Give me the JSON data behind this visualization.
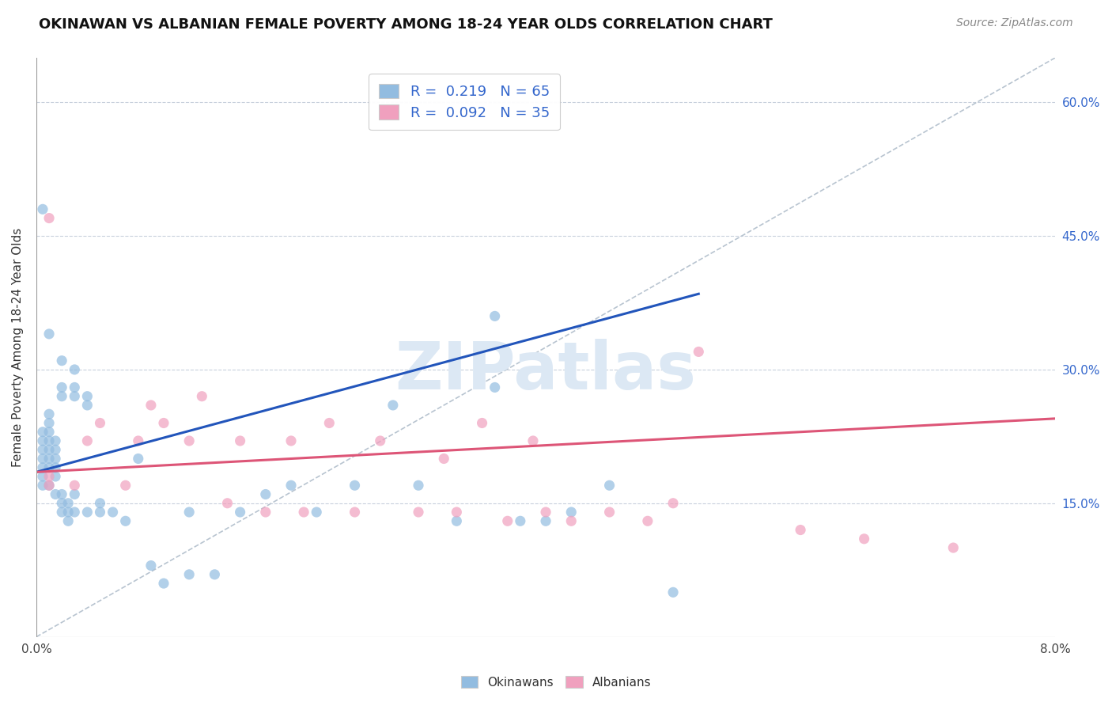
{
  "title": "OKINAWAN VS ALBANIAN FEMALE POVERTY AMONG 18-24 YEAR OLDS CORRELATION CHART",
  "source": "Source: ZipAtlas.com",
  "ylabel": "Female Poverty Among 18-24 Year Olds",
  "xlim": [
    0.0,
    0.08
  ],
  "ylim": [
    0.0,
    0.65
  ],
  "okinawan_color": "#92bce0",
  "albanian_color": "#f0a0be",
  "okinawan_line_color": "#2255bb",
  "albanian_line_color": "#dd5577",
  "ref_line_color": "#b8c4d0",
  "watermark_text": "ZIPatlas",
  "watermark_color": "#dce8f4",
  "okinawan_x": [
    0.0005,
    0.0005,
    0.0005,
    0.0005,
    0.0005,
    0.0005,
    0.0005,
    0.001,
    0.001,
    0.001,
    0.001,
    0.001,
    0.001,
    0.001,
    0.001,
    0.0015,
    0.0015,
    0.0015,
    0.0015,
    0.0015,
    0.0015,
    0.002,
    0.002,
    0.002,
    0.002,
    0.002,
    0.0025,
    0.0025,
    0.0025,
    0.003,
    0.003,
    0.003,
    0.003,
    0.004,
    0.004,
    0.005,
    0.005,
    0.006,
    0.007,
    0.008,
    0.009,
    0.01,
    0.012,
    0.012,
    0.014,
    0.016,
    0.018,
    0.02,
    0.022,
    0.025,
    0.028,
    0.03,
    0.033,
    0.036,
    0.038,
    0.04,
    0.042,
    0.045,
    0.05,
    0.0005,
    0.001,
    0.002,
    0.003,
    0.004,
    0.036
  ],
  "okinawan_y": [
    0.19,
    0.2,
    0.21,
    0.22,
    0.23,
    0.17,
    0.18,
    0.24,
    0.25,
    0.19,
    0.2,
    0.21,
    0.22,
    0.23,
    0.17,
    0.18,
    0.19,
    0.2,
    0.21,
    0.22,
    0.16,
    0.14,
    0.15,
    0.16,
    0.27,
    0.28,
    0.13,
    0.14,
    0.15,
    0.14,
    0.27,
    0.28,
    0.16,
    0.14,
    0.26,
    0.14,
    0.15,
    0.14,
    0.13,
    0.2,
    0.08,
    0.06,
    0.07,
    0.14,
    0.07,
    0.14,
    0.16,
    0.17,
    0.14,
    0.17,
    0.26,
    0.17,
    0.13,
    0.28,
    0.13,
    0.13,
    0.14,
    0.17,
    0.05,
    0.48,
    0.34,
    0.31,
    0.3,
    0.27,
    0.36
  ],
  "albanian_x": [
    0.001,
    0.001,
    0.001,
    0.003,
    0.004,
    0.005,
    0.007,
    0.008,
    0.009,
    0.01,
    0.012,
    0.013,
    0.015,
    0.016,
    0.018,
    0.02,
    0.021,
    0.023,
    0.025,
    0.027,
    0.03,
    0.032,
    0.033,
    0.035,
    0.037,
    0.039,
    0.04,
    0.042,
    0.045,
    0.048,
    0.05,
    0.052,
    0.06,
    0.065,
    0.072
  ],
  "albanian_y": [
    0.17,
    0.18,
    0.47,
    0.17,
    0.22,
    0.24,
    0.17,
    0.22,
    0.26,
    0.24,
    0.22,
    0.27,
    0.15,
    0.22,
    0.14,
    0.22,
    0.14,
    0.24,
    0.14,
    0.22,
    0.14,
    0.2,
    0.14,
    0.24,
    0.13,
    0.22,
    0.14,
    0.13,
    0.14,
    0.13,
    0.15,
    0.32,
    0.12,
    0.11,
    0.1
  ],
  "ok_line_x": [
    0.0,
    0.052
  ],
  "ok_line_y": [
    0.185,
    0.385
  ],
  "al_line_x": [
    0.0,
    0.08
  ],
  "al_line_y": [
    0.185,
    0.245
  ],
  "ref_line_x": [
    0.0,
    0.08
  ],
  "ref_line_y": [
    0.0,
    0.65
  ],
  "ytick_positions": [
    0.15,
    0.3,
    0.45,
    0.6
  ],
  "ytick_labels": [
    "15.0%",
    "30.0%",
    "45.0%",
    "60.0%"
  ],
  "xtick_positions": [
    0.0,
    0.08
  ],
  "xtick_labels": [
    "0.0%",
    "8.0%"
  ],
  "legend_r_ok": "R =  0.219",
  "legend_n_ok": "N = 65",
  "legend_r_al": "R =  0.092",
  "legend_n_al": "N = 35",
  "bottom_legend_ok": "Okinawans",
  "bottom_legend_al": "Albanians",
  "title_fontsize": 13,
  "source_fontsize": 10
}
